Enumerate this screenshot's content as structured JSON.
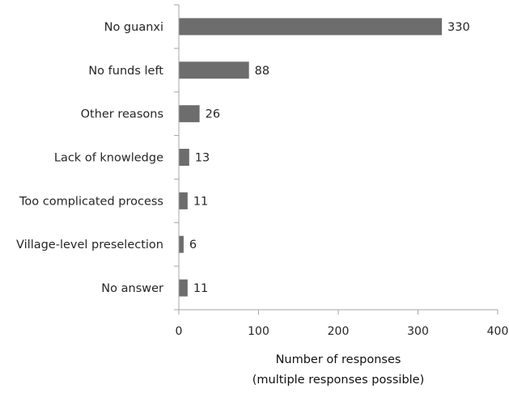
{
  "chart_data": {
    "type": "bar",
    "orientation": "horizontal",
    "categories": [
      "No guanxi",
      "No funds left",
      "Other reasons",
      "Lack of knowledge",
      "Too complicated process",
      "Village-level preselection",
      "No answer"
    ],
    "values": [
      330,
      88,
      26,
      13,
      11,
      6,
      11
    ],
    "xlim": [
      0,
      400
    ],
    "xticks": [
      "0",
      "100",
      "200",
      "300",
      "400"
    ],
    "xlabel": [
      "Number of responses",
      "(multiple responses possible)"
    ],
    "title": "",
    "grid": false,
    "bar_color": "#6d6d6d",
    "axis_color": "#a6a6a6",
    "data_labels": true
  }
}
